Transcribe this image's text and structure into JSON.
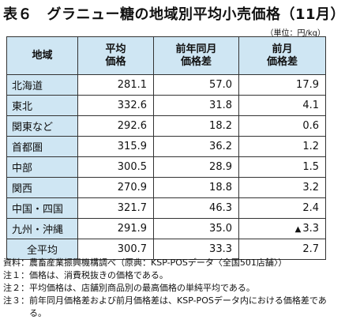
{
  "title": "表６　グラニュー糖の地域別平均小売価格（11月）",
  "unit": "（単位：円/kg）",
  "table": {
    "headers": {
      "region": "地域",
      "price_line1": "平均",
      "price_line2": "価格",
      "yoy_line1": "前年同月",
      "yoy_line2": "価格差",
      "mom_line1": "前月",
      "mom_line2": "価格差"
    },
    "rows": [
      {
        "region": "北海道",
        "price": "281.1",
        "yoy": "57.0",
        "mom": "17.9",
        "mom_neg": ""
      },
      {
        "region": "東北",
        "price": "332.6",
        "yoy": "31.8",
        "mom": "4.1",
        "mom_neg": ""
      },
      {
        "region": "関東など",
        "price": "292.6",
        "yoy": "18.2",
        "mom": "0.6",
        "mom_neg": ""
      },
      {
        "region": "首都圏",
        "price": "315.9",
        "yoy": "36.2",
        "mom": "1.2",
        "mom_neg": ""
      },
      {
        "region": "中部",
        "price": "300.5",
        "yoy": "28.9",
        "mom": "1.5",
        "mom_neg": ""
      },
      {
        "region": "関西",
        "price": "270.9",
        "yoy": "18.8",
        "mom": "3.2",
        "mom_neg": ""
      },
      {
        "region": "中国・四国",
        "price": "321.7",
        "yoy": "46.3",
        "mom": "2.4",
        "mom_neg": ""
      },
      {
        "region": "九州・沖縄",
        "price": "291.9",
        "yoy": "35.0",
        "mom": "3.3",
        "mom_neg": "▲"
      }
    ],
    "total": {
      "region": "全平均",
      "price": "300.7",
      "yoy": "33.3",
      "mom": "2.7"
    }
  },
  "notes": [
    {
      "label": "資料：",
      "text": "農畜産業振興機構調べ（原典：KSP-POSデータ〈全国501店舗〉）"
    },
    {
      "label": "注１：",
      "text": "価格は、消費税抜きの価格である。"
    },
    {
      "label": "注２：",
      "text": "平均価格は、店舗別商品別の最高価格の単純平均である。"
    },
    {
      "label": "注３：",
      "text": "前年同月価格差および前月価格差は、KSP-POSデータ内における価格差である。"
    }
  ]
}
